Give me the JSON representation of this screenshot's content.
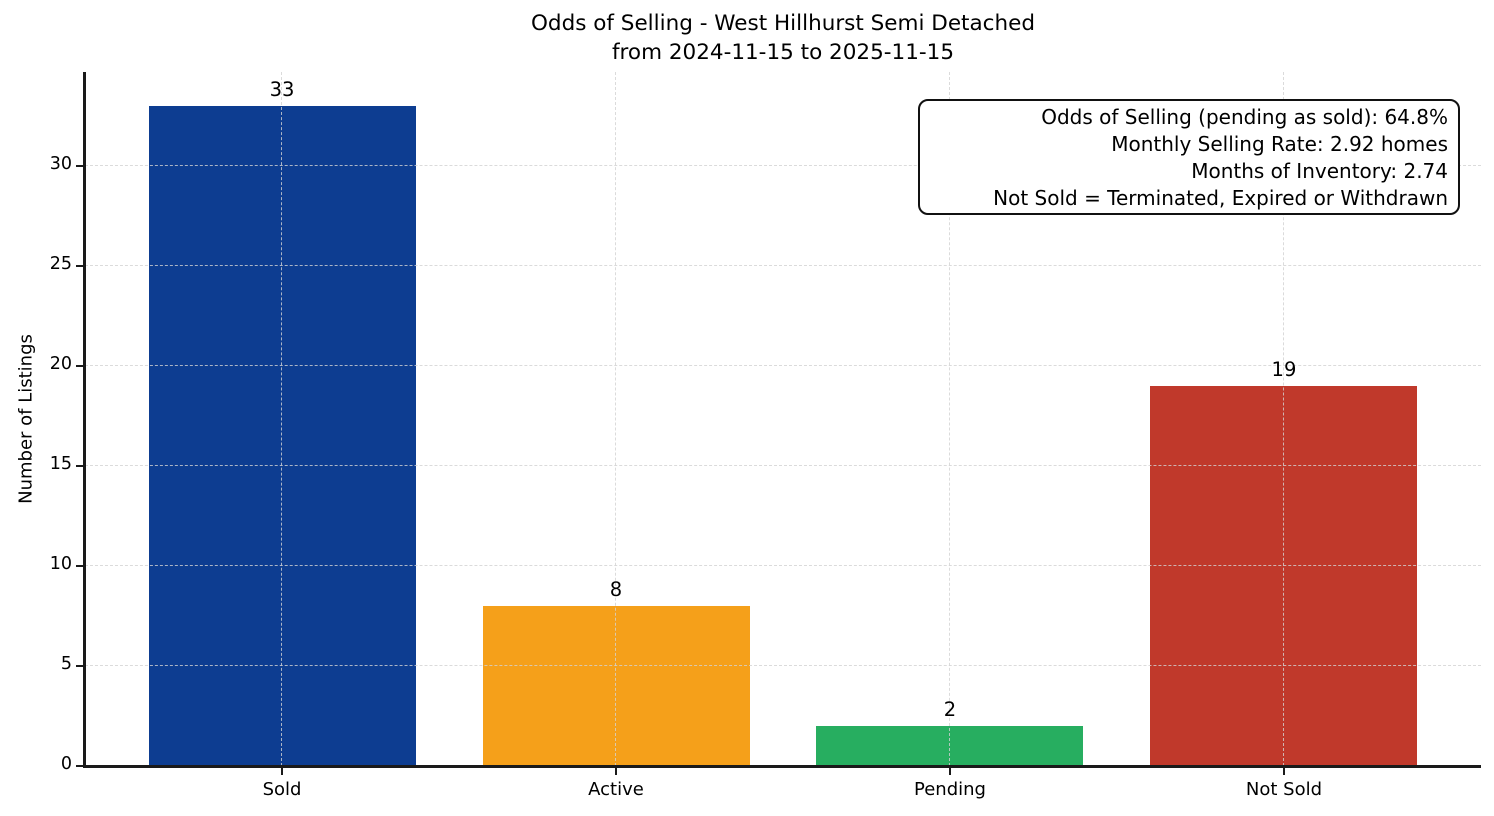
{
  "chart_data": {
    "type": "bar",
    "title_line1": "Odds of Selling - West Hillhurst Semi Detached",
    "title_line2": "from 2024-11-15 to 2025-11-15",
    "categories": [
      "Sold",
      "Active",
      "Pending",
      "Not Sold"
    ],
    "values": [
      33,
      8,
      2,
      19
    ],
    "bar_colors": [
      "#0d3d91",
      "#f5a01a",
      "#27ae60",
      "#c0392b"
    ],
    "bar_value_labels": [
      "33",
      "8",
      "2",
      "19"
    ],
    "xlabel": "",
    "ylabel": "Number of Listings",
    "ylim": [
      0,
      34.7
    ],
    "yticks": [
      0,
      5,
      10,
      15,
      20,
      25,
      30
    ],
    "grid": {
      "style": "dashed",
      "axes": "both",
      "color": "#d3d3d3"
    },
    "legend": "none",
    "annotation_lines": [
      "Odds of Selling (pending as sold): 64.8%",
      "Monthly Selling Rate: 2.92 homes",
      "Months of Inventory: 2.74",
      "Not Sold = Terminated, Expired or Withdrawn"
    ]
  }
}
